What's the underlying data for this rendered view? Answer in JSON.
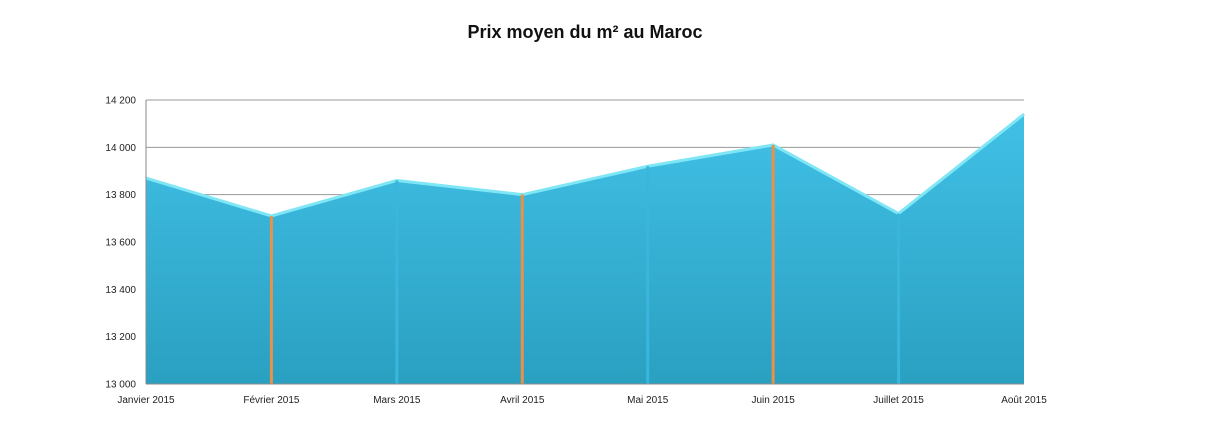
{
  "chart_data": {
    "type": "area",
    "title": "Prix moyen du m² au Maroc",
    "xlabel": "",
    "ylabel": "",
    "categories": [
      "Janvier 2015",
      "Février 2015",
      "Mars 2015",
      "Avril 2015",
      "Mai 2015",
      "Juin 2015",
      "Juillet 2015",
      "Août 2015"
    ],
    "values": [
      13870,
      13710,
      13860,
      13800,
      13920,
      14010,
      13720,
      14140
    ],
    "ylim": [
      13000,
      14200
    ],
    "yticks": [
      13000,
      13200,
      13400,
      13600,
      13800,
      14000,
      14200
    ],
    "ytick_labels": [
      "13 000",
      "13 200",
      "13 400",
      "13 600",
      "13 800",
      "14 000",
      "14 200"
    ],
    "grid": true,
    "legend": "none",
    "colors": {
      "fill_top": "#41c0e6",
      "fill_bottom": "#2aa0c1",
      "line": "#7fe6f5",
      "grid": "#9a9a9a",
      "axis": "#8a8a8a",
      "drop_orange": "#e8914a",
      "drop_blue": "#3ab6dc"
    },
    "drop_line_colors": [
      "none",
      "orange",
      "blue",
      "orange",
      "blue",
      "orange",
      "blue",
      "none"
    ]
  }
}
